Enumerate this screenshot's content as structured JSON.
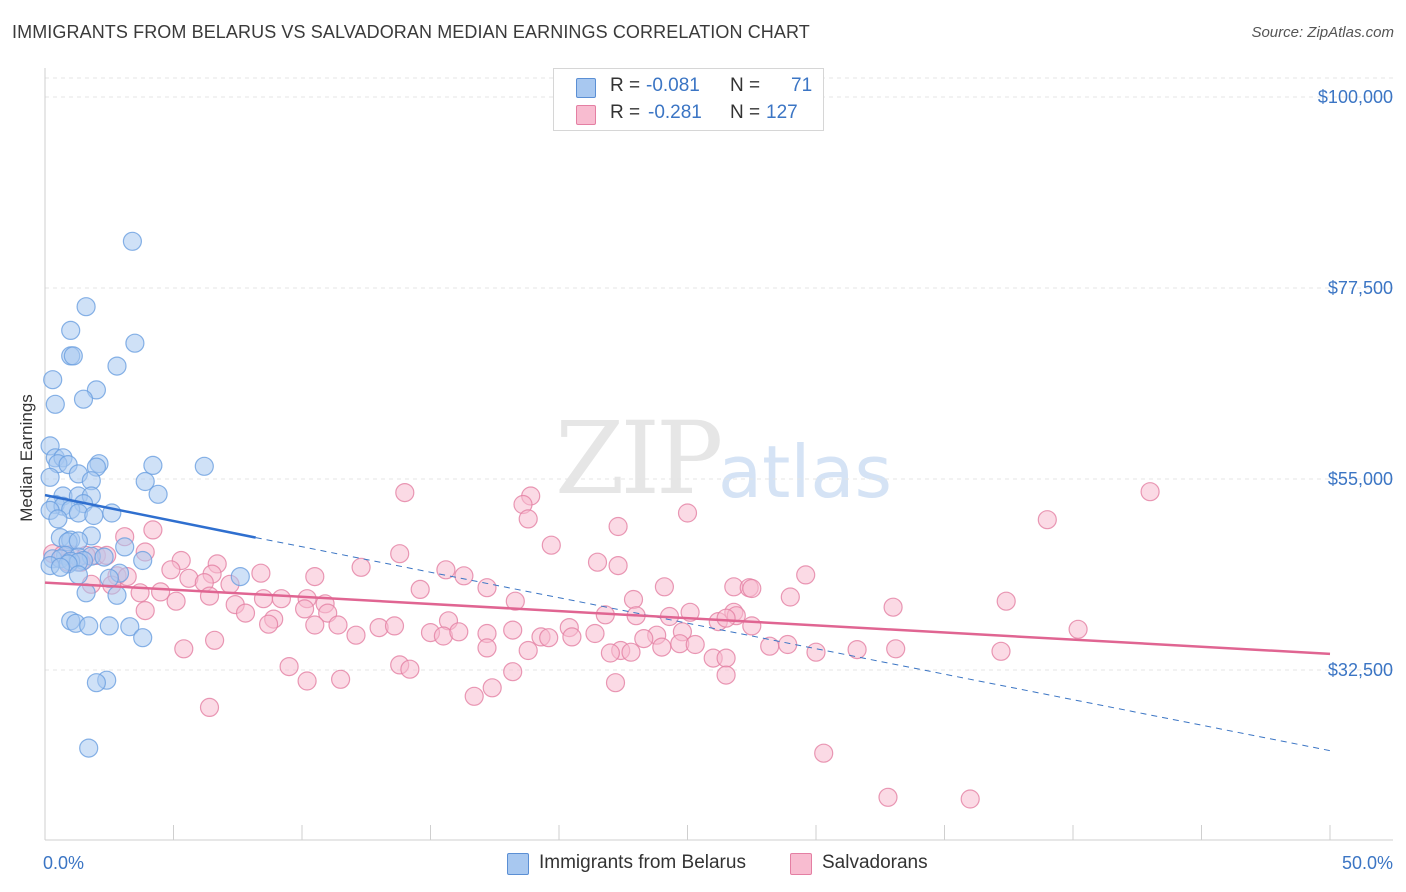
{
  "title": "IMMIGRANTS FROM BELARUS VS SALVADORAN MEDIAN EARNINGS CORRELATION CHART",
  "source": "Source: ZipAtlas.com",
  "watermark": {
    "zip": "ZIP",
    "atlas": "atlas"
  },
  "legend": {
    "rows": [
      {
        "r_label": "R =",
        "r_value": "-0.081",
        "n_label": "N =",
        "n_value": "71",
        "color": "#a8c8f0",
        "border": "#5b8fd4"
      },
      {
        "r_label": "R =",
        "r_value": "-0.281",
        "n_label": "N =",
        "n_value": "127",
        "color": "#f8bcd0",
        "border": "#e47fa3"
      }
    ]
  },
  "bottom_legend": [
    {
      "label": "Immigrants from Belarus",
      "color": "#a8c8f0",
      "border": "#5b8fd4"
    },
    {
      "label": "Salvadorans",
      "color": "#f8bcd0",
      "border": "#e47fa3"
    }
  ],
  "chart_data": {
    "type": "scatter",
    "title": "IMMIGRANTS FROM BELARUS VS SALVADORAN MEDIAN EARNINGS CORRELATION CHART",
    "xlabel": "",
    "ylabel": "Median Earnings",
    "xlim": [
      0,
      50
    ],
    "ylim": [
      14000,
      102000
    ],
    "x_tick_labels": [
      "0.0%",
      "50.0%"
    ],
    "y_ticks": [
      32500,
      55000,
      77500,
      100000
    ],
    "y_tick_labels": [
      "$32,500",
      "$55,000",
      "$77,500",
      "$100,000"
    ],
    "grid": "horizontal-dashed",
    "legend_position": "top-center",
    "series": [
      {
        "name": "Immigrants from Belarus",
        "color": "#6a9fe0",
        "fill": "#a8c8f0",
        "trend": {
          "x": [
            0,
            8.2
          ],
          "y": [
            53100,
            48100
          ],
          "extended_to": [
            50,
            23000
          ]
        },
        "points": [
          [
            3.4,
            83000
          ],
          [
            1.6,
            75300
          ],
          [
            3.5,
            71000
          ],
          [
            1.0,
            72500
          ],
          [
            1.0,
            69500
          ],
          [
            1.1,
            69500
          ],
          [
            2.8,
            68300
          ],
          [
            0.3,
            66700
          ],
          [
            2.0,
            65500
          ],
          [
            1.5,
            64400
          ],
          [
            0.4,
            63800
          ],
          [
            0.2,
            58900
          ],
          [
            0.4,
            57500
          ],
          [
            0.7,
            57500
          ],
          [
            0.5,
            56800
          ],
          [
            0.9,
            56700
          ],
          [
            2.1,
            56800
          ],
          [
            4.2,
            56600
          ],
          [
            6.2,
            56500
          ],
          [
            2.0,
            56400
          ],
          [
            1.3,
            55600
          ],
          [
            0.2,
            55200
          ],
          [
            1.8,
            54800
          ],
          [
            3.9,
            54700
          ],
          [
            4.4,
            53200
          ],
          [
            0.7,
            53000
          ],
          [
            1.3,
            53000
          ],
          [
            1.8,
            53000
          ],
          [
            1.5,
            52100
          ],
          [
            0.4,
            52000
          ],
          [
            0.7,
            51800
          ],
          [
            1.0,
            51400
          ],
          [
            0.2,
            51300
          ],
          [
            1.3,
            51000
          ],
          [
            2.6,
            51000
          ],
          [
            1.9,
            50700
          ],
          [
            0.5,
            50300
          ],
          [
            1.8,
            48300
          ],
          [
            0.6,
            48100
          ],
          [
            1.0,
            47800
          ],
          [
            0.9,
            47600
          ],
          [
            1.3,
            47700
          ],
          [
            3.1,
            47000
          ],
          [
            0.8,
            46000
          ],
          [
            1.3,
            45800
          ],
          [
            1.8,
            45900
          ],
          [
            2.3,
            45800
          ],
          [
            0.3,
            45600
          ],
          [
            0.6,
            45600
          ],
          [
            3.8,
            45400
          ],
          [
            1.5,
            45400
          ],
          [
            1.0,
            45300
          ],
          [
            1.3,
            45200
          ],
          [
            0.9,
            45000
          ],
          [
            0.2,
            44800
          ],
          [
            2.9,
            43900
          ],
          [
            1.3,
            43700
          ],
          [
            2.5,
            43300
          ],
          [
            7.6,
            43500
          ],
          [
            1.6,
            41600
          ],
          [
            2.8,
            41300
          ],
          [
            1.0,
            38300
          ],
          [
            1.2,
            38000
          ],
          [
            1.7,
            37700
          ],
          [
            2.5,
            37700
          ],
          [
            3.3,
            37600
          ],
          [
            3.8,
            36300
          ],
          [
            2.4,
            31300
          ],
          [
            2.0,
            31000
          ],
          [
            1.7,
            23300
          ],
          [
            0.6,
            44600
          ]
        ]
      },
      {
        "name": "Salvadorans",
        "color": "#e47fa3",
        "fill": "#f8bcd0",
        "trend": {
          "x": [
            0,
            50
          ],
          "y": [
            42800,
            34400
          ]
        },
        "points": [
          [
            14.0,
            53400
          ],
          [
            18.9,
            53000
          ],
          [
            43.0,
            53500
          ],
          [
            18.6,
            52000
          ],
          [
            25.0,
            51000
          ],
          [
            18.8,
            50300
          ],
          [
            39.0,
            50200
          ],
          [
            22.3,
            49400
          ],
          [
            4.2,
            49000
          ],
          [
            3.1,
            48200
          ],
          [
            19.7,
            47200
          ],
          [
            13.8,
            46200
          ],
          [
            3.9,
            46400
          ],
          [
            5.3,
            45400
          ],
          [
            2.0,
            46000
          ],
          [
            2.4,
            46000
          ],
          [
            1.0,
            46100
          ],
          [
            1.6,
            46000
          ],
          [
            0.3,
            46200
          ],
          [
            0.7,
            46100
          ],
          [
            0.9,
            45200
          ],
          [
            1.4,
            45200
          ],
          [
            21.5,
            45200
          ],
          [
            22.3,
            44800
          ],
          [
            6.7,
            45000
          ],
          [
            12.3,
            44600
          ],
          [
            15.6,
            44300
          ],
          [
            4.9,
            44300
          ],
          [
            8.4,
            43900
          ],
          [
            2.8,
            43600
          ],
          [
            3.2,
            43500
          ],
          [
            6.5,
            43800
          ],
          [
            10.5,
            43500
          ],
          [
            16.3,
            43600
          ],
          [
            29.6,
            43700
          ],
          [
            5.6,
            43300
          ],
          [
            6.2,
            42800
          ],
          [
            1.8,
            42600
          ],
          [
            2.6,
            42500
          ],
          [
            7.2,
            42600
          ],
          [
            14.6,
            42000
          ],
          [
            17.2,
            42200
          ],
          [
            24.1,
            42300
          ],
          [
            26.8,
            42300
          ],
          [
            27.4,
            42200
          ],
          [
            27.5,
            42100
          ],
          [
            3.7,
            41600
          ],
          [
            4.5,
            41700
          ],
          [
            6.4,
            41200
          ],
          [
            8.5,
            40900
          ],
          [
            9.2,
            40900
          ],
          [
            10.2,
            40900
          ],
          [
            10.9,
            40300
          ],
          [
            5.1,
            40600
          ],
          [
            22.9,
            40800
          ],
          [
            29.0,
            41100
          ],
          [
            7.4,
            40200
          ],
          [
            18.3,
            40600
          ],
          [
            33.0,
            39900
          ],
          [
            37.4,
            40600
          ],
          [
            3.9,
            39500
          ],
          [
            10.1,
            39700
          ],
          [
            11.0,
            39200
          ],
          [
            7.8,
            39200
          ],
          [
            21.8,
            39000
          ],
          [
            23.0,
            38900
          ],
          [
            24.3,
            38800
          ],
          [
            25.1,
            39300
          ],
          [
            26.8,
            39300
          ],
          [
            26.9,
            38900
          ],
          [
            15.7,
            38300
          ],
          [
            8.9,
            38500
          ],
          [
            26.2,
            38200
          ],
          [
            26.5,
            38600
          ],
          [
            8.7,
            37900
          ],
          [
            10.5,
            37800
          ],
          [
            11.4,
            37800
          ],
          [
            13.0,
            37500
          ],
          [
            13.6,
            37700
          ],
          [
            20.4,
            37500
          ],
          [
            27.5,
            37700
          ],
          [
            19.3,
            36400
          ],
          [
            20.5,
            36400
          ],
          [
            12.1,
            36600
          ],
          [
            15.0,
            36900
          ],
          [
            15.5,
            36500
          ],
          [
            16.1,
            37000
          ],
          [
            17.2,
            36800
          ],
          [
            18.2,
            37200
          ],
          [
            19.6,
            36300
          ],
          [
            40.2,
            37300
          ],
          [
            21.4,
            36800
          ],
          [
            23.8,
            36600
          ],
          [
            24.8,
            37000
          ],
          [
            23.3,
            36200
          ],
          [
            24.7,
            35600
          ],
          [
            24.0,
            35200
          ],
          [
            25.3,
            35500
          ],
          [
            28.2,
            35300
          ],
          [
            28.9,
            35500
          ],
          [
            31.6,
            34900
          ],
          [
            17.2,
            35100
          ],
          [
            18.8,
            34800
          ],
          [
            22.4,
            34800
          ],
          [
            22.8,
            34600
          ],
          [
            6.6,
            36000
          ],
          [
            5.4,
            35000
          ],
          [
            22.0,
            34500
          ],
          [
            30.0,
            34600
          ],
          [
            33.1,
            35000
          ],
          [
            37.2,
            34700
          ],
          [
            26.0,
            33900
          ],
          [
            26.5,
            33900
          ],
          [
            9.5,
            32900
          ],
          [
            13.8,
            33100
          ],
          [
            14.2,
            32600
          ],
          [
            18.2,
            32300
          ],
          [
            11.5,
            31400
          ],
          [
            10.2,
            31200
          ],
          [
            17.4,
            30400
          ],
          [
            16.7,
            29400
          ],
          [
            6.4,
            28100
          ],
          [
            26.5,
            31900
          ],
          [
            22.2,
            31000
          ],
          [
            30.3,
            22700
          ],
          [
            32.8,
            17500
          ],
          [
            36.0,
            17300
          ]
        ]
      }
    ]
  }
}
